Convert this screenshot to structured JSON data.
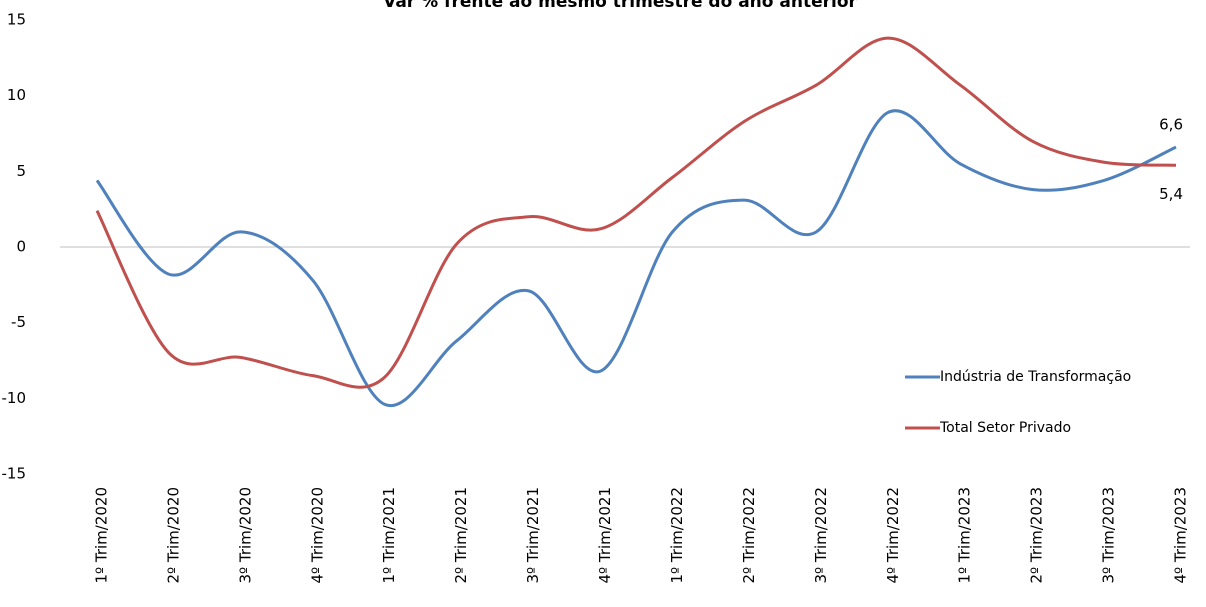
{
  "chart_data": {
    "type": "line",
    "title": "Var % frente ao mesmo trimestre do ano anterior",
    "categories": [
      "1º Trim/2020",
      "2º Trim/2020",
      "3º Trim/2020",
      "4º Trim/2020",
      "1º Trim/2021",
      "2º Trim/2021",
      "3º Trim/2021",
      "4º Trim/2021",
      "1º Trim/2022",
      "2º Trim/2022",
      "3º Trim/2022",
      "4º Trim/2022",
      "1º Trim/2023",
      "2º Trim/2023",
      "3º Trim/2023",
      "4º Trim/2023"
    ],
    "series": [
      {
        "name": "Indústria de Transformação",
        "color": "#4f81bd",
        "values": [
          4.4,
          -1.8,
          1.0,
          -2.2,
          -10.4,
          -6.2,
          -2.9,
          -8.2,
          1.0,
          3.1,
          1.0,
          8.9,
          5.5,
          3.8,
          4.4,
          6.6
        ],
        "value_labels": [
          null,
          null,
          null,
          null,
          null,
          null,
          null,
          null,
          null,
          null,
          null,
          null,
          null,
          null,
          null,
          "6,6"
        ]
      },
      {
        "name": "Total Setor Privado",
        "color": "#c0504d",
        "values": [
          2.4,
          -7.0,
          -7.3,
          -8.5,
          -8.6,
          0.2,
          2.0,
          1.2,
          4.6,
          8.3,
          10.7,
          13.8,
          10.7,
          7.0,
          5.6,
          5.4
        ],
        "value_labels": [
          null,
          null,
          null,
          null,
          null,
          null,
          null,
          null,
          null,
          null,
          null,
          null,
          null,
          null,
          null,
          "5,4"
        ]
      }
    ],
    "ylim": [
      -15,
      15
    ],
    "yticks": [
      15,
      10,
      5,
      0,
      -5,
      -10,
      -15
    ],
    "zero_line": true,
    "legend": "right"
  }
}
